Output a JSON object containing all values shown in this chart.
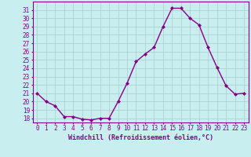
{
  "x": [
    0,
    1,
    2,
    3,
    4,
    5,
    6,
    7,
    8,
    9,
    10,
    11,
    12,
    13,
    14,
    15,
    16,
    17,
    18,
    19,
    20,
    21,
    22,
    23
  ],
  "y": [
    21,
    20,
    19.5,
    18.2,
    18.2,
    17.9,
    17.8,
    18.0,
    18.0,
    20.0,
    22.2,
    24.8,
    25.7,
    26.5,
    29.0,
    31.2,
    31.2,
    30.0,
    29.2,
    26.5,
    24.1,
    21.9,
    20.9,
    21.0
  ],
  "line_color": "#880088",
  "marker": "D",
  "marker_size": 2.0,
  "line_width": 1.0,
  "bg_color": "#c8eef0",
  "grid_color": "#aacccc",
  "xlabel": "Windchill (Refroidissement éolien,°C)",
  "xlabel_color": "#880088",
  "tick_color": "#880088",
  "ylim": [
    17.5,
    32.0
  ],
  "yticks": [
    18,
    19,
    20,
    21,
    22,
    23,
    24,
    25,
    26,
    27,
    28,
    29,
    30,
    31
  ],
  "xticks": [
    0,
    1,
    2,
    3,
    4,
    5,
    6,
    7,
    8,
    9,
    10,
    11,
    12,
    13,
    14,
    15,
    16,
    17,
    18,
    19,
    20,
    21,
    22,
    23
  ],
  "xlim": [
    -0.5,
    23.5
  ],
  "spine_color": "#880088",
  "tick_fontsize": 5.5,
  "xlabel_fontsize": 6.0
}
